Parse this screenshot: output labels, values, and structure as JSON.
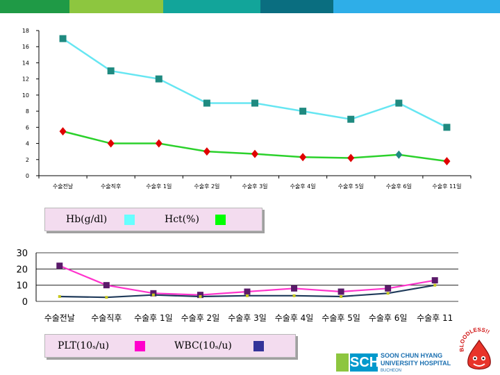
{
  "colors": {
    "bar": [
      "#1f9a46",
      "#8dc63f",
      "#12a59a",
      "#0a6e80",
      "#2eaee8"
    ],
    "hb": "#66e6f2",
    "hct": "#2bd12b",
    "hb_marker": "#1f8a80",
    "hct_marker": "#e00000",
    "plt": "#ff33cc",
    "wbc": "#1f3a5a",
    "plt_marker": "#5a1a6a",
    "wbc_marker": "#c8c820",
    "legend1_hb_swatch": "#66ffff",
    "legend1_hct_swatch": "#00ff00",
    "legend2_plt_swatch": "#ff00cc",
    "legend2_wbc_swatch": "#333399"
  },
  "legend1": {
    "hb": "Hb(g/dl)",
    "hct": "Hct(%)"
  },
  "legend2": {
    "plt": "PLT(10ₛ/u)",
    "wbc": "WBC(10ₛ/u)"
  },
  "logo": {
    "mark": "SCH",
    "line1": "SOON CHUN HYANG",
    "line2": "UNIVERSITY HOSPITAL",
    "line3": "BUCHEON"
  },
  "mascot": {
    "text": "BLOODLESS!!",
    "icon": "blood-drop-mascot-icon"
  },
  "chart_data": [
    {
      "type": "line",
      "title": "",
      "xlabel": "",
      "ylabel": "",
      "categories": [
        "수술전날",
        "수술직후",
        "수술후 1일",
        "수술후 2일",
        "수술후 3일",
        "수술후 4일",
        "수술후 5일",
        "수술후 6일",
        "수술후 11일"
      ],
      "ylim": [
        0,
        18
      ],
      "yticks": [
        0,
        2,
        4,
        6,
        8,
        10,
        12,
        14,
        16,
        18
      ],
      "grid": false,
      "legend": "below",
      "series": [
        {
          "name": "Hb(g/dl)",
          "values": [
            5.5,
            4.0,
            4.0,
            3.0,
            2.7,
            2.3,
            2.2,
            2.6,
            1.8
          ]
        },
        {
          "name": "Hct(%)",
          "values": [
            17,
            13,
            12,
            9,
            9,
            8,
            7,
            9,
            6
          ]
        }
      ]
    },
    {
      "type": "line",
      "title": "",
      "xlabel": "",
      "ylabel": "",
      "categories": [
        "수술전날",
        "수술직후",
        "수술후 1일",
        "수술후 2일",
        "수술후 3일",
        "수술후 4일",
        "수술후 5일",
        "수술후 6일",
        "수술후 11"
      ],
      "ylim": [
        0,
        30
      ],
      "yticks": [
        0,
        10,
        20,
        30
      ],
      "grid": true,
      "legend": "below",
      "series": [
        {
          "name": "PLT(10ₛ/u)",
          "values": [
            22,
            10,
            5,
            4,
            6,
            8,
            6,
            8,
            13
          ]
        },
        {
          "name": "WBC(10ₛ/u)",
          "values": [
            3,
            2.5,
            4,
            3,
            3.5,
            3.5,
            3,
            5,
            10
          ]
        }
      ]
    }
  ]
}
